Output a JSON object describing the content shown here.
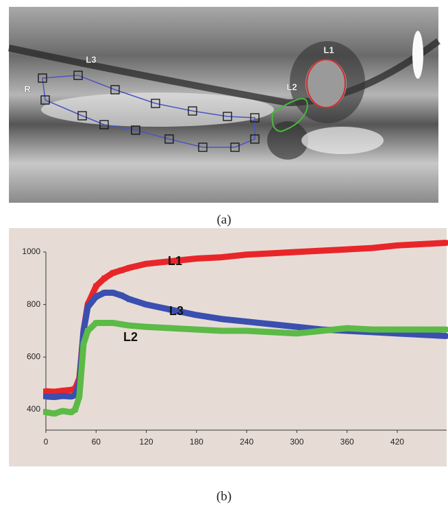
{
  "panel_a": {
    "labels": {
      "l1": "L1",
      "l2": "L2",
      "l3": "L3",
      "r": "R"
    },
    "caption": "(a)"
  },
  "panel_b": {
    "caption": "(b)"
  },
  "chart_data": {
    "type": "line",
    "x": [
      0,
      10,
      20,
      30,
      35,
      40,
      45,
      50,
      60,
      70,
      80,
      90,
      100,
      120,
      150,
      180,
      210,
      240,
      270,
      300,
      330,
      360,
      390,
      420,
      450,
      479
    ],
    "series": [
      {
        "name": "L1",
        "color": "#e8262a",
        "values": [
          470,
          468,
          472,
          475,
          480,
          520,
          700,
          800,
          870,
          900,
          920,
          930,
          940,
          955,
          965,
          975,
          980,
          990,
          995,
          1000,
          1005,
          1010,
          1015,
          1025,
          1030,
          1035
        ]
      },
      {
        "name": "L2",
        "color": "#5cba47",
        "values": [
          390,
          385,
          395,
          390,
          400,
          450,
          650,
          700,
          730,
          730,
          730,
          725,
          720,
          715,
          710,
          705,
          700,
          700,
          695,
          690,
          700,
          710,
          705,
          705,
          705,
          705
        ]
      },
      {
        "name": "L3",
        "color": "#3a4fb0",
        "values": [
          450,
          448,
          452,
          450,
          455,
          500,
          700,
          790,
          830,
          845,
          845,
          835,
          820,
          800,
          780,
          760,
          745,
          735,
          725,
          715,
          705,
          700,
          695,
          690,
          685,
          680
        ]
      }
    ],
    "xlim": [
      0,
      479
    ],
    "ylim": [
      322,
      1091
    ],
    "xticks": [
      0,
      60,
      120,
      180,
      240,
      300,
      360,
      420
    ],
    "yticks": [
      400,
      600,
      800,
      1000
    ]
  }
}
